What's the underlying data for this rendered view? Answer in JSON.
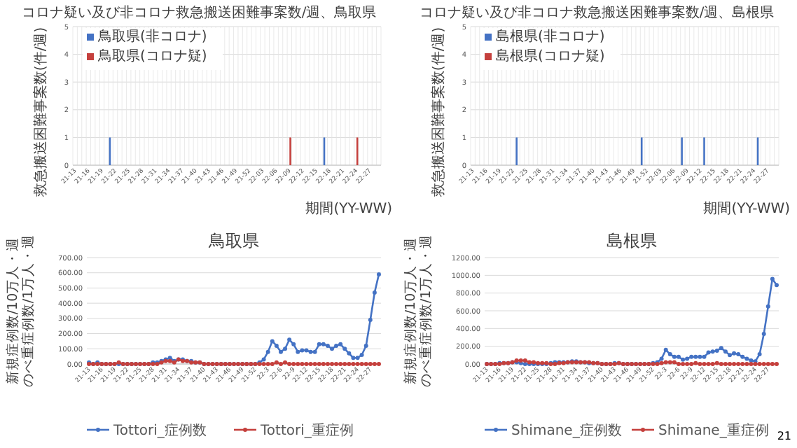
{
  "chart_data": [
    {
      "type": "bar",
      "title": "コロナ疑い及び非コロナ救急搬送困難事案数/週、鳥取県",
      "xlabel": "期間(YY-WW)",
      "ylabel": "救急搬送困難事案数(件/週)",
      "categories": [
        "21-13",
        null,
        null,
        "21-16",
        null,
        null,
        "21-19",
        null,
        null,
        "21-22",
        null,
        null,
        "21-25",
        null,
        null,
        "21-28",
        null,
        null,
        "21-31",
        null,
        null,
        "21-34",
        null,
        null,
        "21-37",
        null,
        null,
        "21-40",
        null,
        null,
        "21-43",
        null,
        null,
        "21-46",
        null,
        null,
        "21-49",
        null,
        null,
        "21-52",
        null,
        null,
        "22-03",
        null,
        null,
        "22-06",
        null,
        null,
        "22-09",
        null,
        null,
        "22-12",
        null,
        null,
        "22-15",
        null,
        null,
        "22-18",
        null,
        null,
        "22-21",
        null,
        null,
        "22-24",
        null,
        null,
        "22-27",
        null,
        null
      ],
      "ylim": [
        0,
        5
      ],
      "yticks": [
        0,
        1,
        2,
        3,
        4,
        5
      ],
      "grid": true,
      "legend": "top left",
      "series": [
        {
          "name": "鳥取県(非コロナ)",
          "color": "#4472c4",
          "values": [
            0,
            0,
            0,
            0,
            0,
            0,
            0,
            0,
            1,
            0,
            0,
            0,
            0,
            0,
            0,
            0,
            0,
            0,
            0,
            0,
            0,
            0,
            0,
            0,
            0,
            0,
            0,
            0,
            0,
            0,
            0,
            0,
            0,
            0,
            0,
            0,
            0,
            0,
            0,
            0,
            0,
            0,
            0,
            0,
            0,
            0,
            0,
            0,
            0,
            0,
            0,
            0,
            0,
            0,
            0,
            0,
            1,
            0,
            0,
            0,
            0,
            0,
            0,
            0,
            0,
            0,
            0,
            0,
            0
          ]
        },
        {
          "name": "鳥取県(コロナ疑)",
          "color": "#c5403d",
          "values": [
            0,
            0,
            0,
            0,
            0,
            0,
            0,
            0,
            0,
            0,
            0,
            0,
            0,
            0,
            0,
            0,
            0,
            0,
            0,
            0,
            0,
            0,
            0,
            0,
            0,
            0,
            0,
            0,
            0,
            0,
            0,
            0,
            0,
            0,
            0,
            0,
            0,
            0,
            0,
            0,
            0,
            0,
            0,
            0,
            0,
            0,
            0,
            0,
            1,
            0,
            0,
            0,
            0,
            0,
            0,
            0,
            0,
            0,
            0,
            0,
            0,
            0,
            0,
            1,
            0,
            0,
            0,
            0,
            0
          ]
        }
      ]
    },
    {
      "type": "bar",
      "title": "コロナ疑い及び非コロナ救急搬送困難事案数/週、島根県",
      "xlabel": "期間(YY-WW)",
      "ylabel": "救急搬送困難事案数(件/週)",
      "categories": [
        "21-13",
        null,
        null,
        "21-16",
        null,
        null,
        "21-19",
        null,
        null,
        "21-22",
        null,
        null,
        "21-25",
        null,
        null,
        "21-28",
        null,
        null,
        "21-31",
        null,
        null,
        "21-34",
        null,
        null,
        "21-37",
        null,
        null,
        "21-40",
        null,
        null,
        "21-43",
        null,
        null,
        "21-46",
        null,
        null,
        "21-49",
        null,
        null,
        "21-52",
        null,
        null,
        "22-03",
        null,
        null,
        "22-06",
        null,
        null,
        "22-09",
        null,
        null,
        "22-12",
        null,
        null,
        "22-15",
        null,
        null,
        "22-18",
        null,
        null,
        "22-21",
        null,
        null,
        "22-24",
        null,
        null,
        "22-27",
        null,
        null
      ],
      "ylim": [
        0,
        5
      ],
      "yticks": [
        0,
        1,
        2,
        3,
        4,
        5
      ],
      "grid": true,
      "legend": "top left",
      "series": [
        {
          "name": "島根県(非コロナ)",
          "color": "#4472c4",
          "values": [
            0,
            0,
            0,
            0,
            0,
            0,
            0,
            0,
            0,
            0,
            1,
            0,
            0,
            0,
            0,
            0,
            0,
            0,
            0,
            0,
            0,
            0,
            0,
            0,
            0,
            0,
            0,
            0,
            0,
            0,
            0,
            0,
            0,
            0,
            0,
            0,
            0,
            0,
            1,
            0,
            0,
            0,
            0,
            0,
            0,
            0,
            0,
            1,
            0,
            0,
            0,
            0,
            1,
            0,
            0,
            0,
            0,
            0,
            0,
            0,
            0,
            0,
            0,
            0,
            1,
            0,
            0,
            0,
            0
          ]
        },
        {
          "name": "島根県(コロナ疑)",
          "color": "#c5403d",
          "values": [
            0,
            0,
            0,
            0,
            0,
            0,
            0,
            0,
            0,
            0,
            0,
            0,
            0,
            0,
            0,
            0,
            0,
            0,
            0,
            0,
            0,
            0,
            0,
            0,
            0,
            0,
            0,
            0,
            0,
            0,
            0,
            0,
            0,
            0,
            0,
            0,
            0,
            0,
            0,
            0,
            0,
            0,
            0,
            0,
            0,
            0,
            0,
            0,
            0,
            0,
            0,
            0,
            0,
            0,
            0,
            0,
            0,
            0,
            0,
            0,
            0,
            0,
            0,
            0,
            0,
            0,
            0,
            0,
            0
          ]
        }
      ]
    },
    {
      "type": "line",
      "title": "鳥取県",
      "ylabel": "新規症例数/10万人・週のべ重症例数/1万人・週",
      "categories": [
        "21-13",
        null,
        null,
        "21-16",
        null,
        null,
        "21-19",
        null,
        null,
        "21-22",
        null,
        null,
        "21-25",
        null,
        null,
        "21-28",
        null,
        null,
        "21-31",
        null,
        null,
        "21-34",
        null,
        null,
        "21-37",
        null,
        null,
        "21-40",
        null,
        null,
        "21-43",
        null,
        null,
        "21-46",
        null,
        null,
        "21-49",
        null,
        null,
        "21-52",
        null,
        null,
        "22-3",
        null,
        null,
        "22-6",
        null,
        null,
        "22-9",
        null,
        null,
        "22-12",
        null,
        null,
        "22-15",
        null,
        null,
        "22-18",
        null,
        null,
        "22-21",
        null,
        null,
        "22-24",
        null,
        null,
        "22-27",
        null,
        null
      ],
      "ylim": [
        0,
        700
      ],
      "yticks": [
        {
          "value": 0,
          "label": "0.00"
        },
        {
          "value": 100,
          "label": "100.00"
        },
        {
          "value": 200,
          "label": "200.00"
        },
        {
          "value": 300,
          "label": "300.00"
        },
        {
          "value": 400,
          "label": "400.00"
        },
        {
          "value": 500,
          "label": "500.00"
        },
        {
          "value": 600,
          "label": "600.00"
        },
        {
          "value": 700,
          "label": "700.00"
        }
      ],
      "grid": "y",
      "legend": "bottom",
      "marker": "circle",
      "line_style": "solid",
      "series": [
        {
          "name": "Tottori_症例数",
          "color": "#4472c4",
          "values": [
            10,
            0,
            10,
            0,
            0,
            0,
            0,
            0,
            0,
            0,
            0,
            0,
            0,
            0,
            0,
            10,
            10,
            20,
            30,
            40,
            20,
            30,
            30,
            20,
            20,
            10,
            10,
            0,
            0,
            0,
            0,
            0,
            0,
            0,
            0,
            0,
            0,
            0,
            0,
            0,
            10,
            30,
            80,
            150,
            120,
            80,
            100,
            160,
            130,
            80,
            90,
            90,
            80,
            80,
            130,
            130,
            120,
            100,
            120,
            130,
            100,
            70,
            40,
            40,
            60,
            120,
            290,
            470,
            590
          ]
        },
        {
          "name": "Tottori_重症例",
          "color": "#c5403d",
          "values": [
            0,
            0,
            0,
            0,
            0,
            0,
            0,
            10,
            0,
            0,
            0,
            0,
            0,
            0,
            0,
            0,
            0,
            10,
            20,
            20,
            10,
            30,
            20,
            20,
            10,
            10,
            10,
            0,
            0,
            0,
            0,
            0,
            0,
            0,
            0,
            0,
            0,
            0,
            0,
            0,
            0,
            0,
            0,
            0,
            10,
            0,
            10,
            0,
            0,
            0,
            0,
            0,
            0,
            0,
            0,
            0,
            0,
            0,
            0,
            0,
            0,
            0,
            0,
            0,
            0,
            0,
            0,
            0,
            0
          ]
        }
      ]
    },
    {
      "type": "line",
      "title": "島根県",
      "ylabel": "新規症例数/10万人・週のべ重症例数/1万人・週",
      "categories": [
        "21-13",
        null,
        null,
        "21-16",
        null,
        null,
        "21-19",
        null,
        null,
        "21-22",
        null,
        null,
        "21-25",
        null,
        null,
        "21-28",
        null,
        null,
        "21-31",
        null,
        null,
        "21-34",
        null,
        null,
        "21-37",
        null,
        null,
        "21-40",
        null,
        null,
        "21-43",
        null,
        null,
        "21-46",
        null,
        null,
        "21-49",
        null,
        null,
        "21-52",
        null,
        null,
        "22-3",
        null,
        null,
        "22-6",
        null,
        null,
        "22-9",
        null,
        null,
        "22-12",
        null,
        null,
        "22-15",
        null,
        null,
        "22-18",
        null,
        null,
        "22-21",
        null,
        null,
        "22-24",
        null,
        null,
        "22-27",
        null,
        null
      ],
      "ylim": [
        0,
        1200
      ],
      "yticks": [
        {
          "value": 0,
          "label": "0.00"
        },
        {
          "value": 200,
          "label": "200.00"
        },
        {
          "value": 400,
          "label": "400.00"
        },
        {
          "value": 600,
          "label": "600.00"
        },
        {
          "value": 800,
          "label": "800.00"
        },
        {
          "value": 1000,
          "label": "1000.00"
        },
        {
          "value": 1200,
          "label": "1200.00"
        }
      ],
      "grid": "y",
      "legend": "bottom",
      "marker": "circle",
      "line_style": "solid",
      "annotations": [
        "21"
      ],
      "series": [
        {
          "name": "Shimane_症例数",
          "color": "#4472c4",
          "values": [
            0,
            0,
            0,
            10,
            10,
            10,
            20,
            20,
            10,
            0,
            0,
            0,
            0,
            0,
            0,
            10,
            20,
            20,
            20,
            20,
            30,
            30,
            20,
            20,
            10,
            10,
            10,
            0,
            0,
            0,
            10,
            10,
            0,
            0,
            0,
            0,
            0,
            0,
            0,
            10,
            20,
            60,
            160,
            110,
            80,
            80,
            50,
            60,
            80,
            80,
            80,
            80,
            130,
            140,
            150,
            180,
            140,
            100,
            120,
            110,
            80,
            60,
            40,
            30,
            110,
            340,
            650,
            960,
            890
          ]
        },
        {
          "name": "Shimane_重症例",
          "color": "#c5403d",
          "values": [
            0,
            0,
            0,
            0,
            10,
            10,
            20,
            40,
            40,
            40,
            20,
            20,
            10,
            10,
            10,
            0,
            0,
            10,
            10,
            20,
            20,
            20,
            20,
            20,
            20,
            10,
            10,
            0,
            0,
            0,
            0,
            10,
            0,
            0,
            0,
            0,
            0,
            0,
            0,
            0,
            0,
            10,
            20,
            20,
            20,
            0,
            0,
            0,
            0,
            10,
            0,
            0,
            0,
            0,
            10,
            0,
            0,
            0,
            0,
            0,
            0,
            0,
            0,
            0,
            0,
            0,
            0,
            0,
            0
          ]
        }
      ]
    }
  ]
}
